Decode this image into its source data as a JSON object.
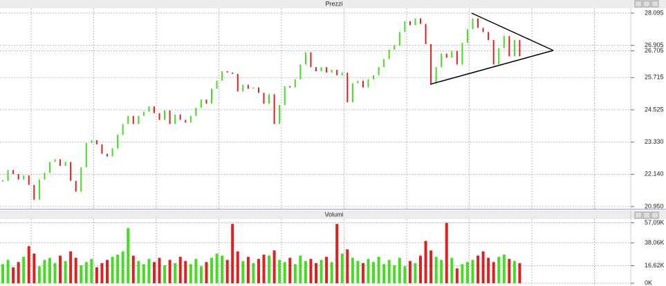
{
  "chart_data": [
    {
      "type": "candlestick",
      "title": "Prezzi",
      "values": [
        21900,
        22300,
        22150,
        21950,
        22100,
        21750,
        21200,
        21950,
        22200,
        22600,
        22700,
        22450,
        22600,
        21900,
        21500,
        22400,
        23300,
        23400,
        23250,
        22900,
        22800,
        23100,
        23600,
        24000,
        24300,
        24000,
        24300,
        24450,
        24650,
        24400,
        24150,
        24500,
        24000,
        24350,
        24150,
        24050,
        24300,
        24600,
        24900,
        24750,
        25300,
        25600,
        25950,
        25900,
        25850,
        25200,
        25450,
        25300,
        25350,
        25150,
        24750,
        25100,
        24000,
        24700,
        25400,
        25350,
        25650,
        26200,
        26650,
        26100,
        25950,
        26100,
        25900,
        26000,
        25800,
        25900,
        24800,
        25500,
        25600,
        25350,
        25650,
        25800,
        26100,
        26400,
        26750,
        26900,
        27400,
        27800,
        27650,
        27900,
        27700,
        26950,
        25500,
        26100,
        26600,
        26450,
        26700,
        26200,
        27000,
        27500,
        27900,
        27550,
        27400,
        27100,
        26200,
        26800,
        27250,
        26500,
        27100,
        26500
      ],
      "up_color": "#44dd22",
      "down_color": "#e02020",
      "ylim": [
        20848,
        28376
      ],
      "yticks": [
        {
          "value": 28095,
          "label": "28.095"
        },
        {
          "value": 26905,
          "label": "26.905"
        },
        {
          "value": 26705,
          "label": "26.705"
        },
        {
          "value": 25715,
          "label": "25.715"
        },
        {
          "value": 24525,
          "label": "24.525"
        },
        {
          "value": 23330,
          "label": "23.330"
        },
        {
          "value": 22140,
          "label": "22.140"
        },
        {
          "value": 20950,
          "label": "20.950"
        }
      ],
      "grid": true
    },
    {
      "type": "bar",
      "title": "Volumi",
      "values": [
        18,
        22,
        15,
        20,
        25,
        35,
        28,
        16,
        22,
        24,
        19,
        26,
        21,
        30,
        24,
        17,
        20,
        23,
        15,
        19,
        22,
        25,
        27,
        30,
        52,
        26,
        21,
        18,
        23,
        20,
        24,
        17,
        22,
        19,
        25,
        21,
        18,
        23,
        16,
        20,
        24,
        28,
        26,
        22,
        56,
        30,
        21,
        25,
        19,
        23,
        27,
        26,
        31,
        22,
        20,
        24,
        18,
        26,
        21,
        23,
        19,
        22,
        25,
        20,
        56,
        28,
        32,
        24,
        21,
        19,
        23,
        20,
        25,
        18,
        22,
        17,
        24,
        16,
        21,
        19,
        26,
        40,
        31,
        25,
        22,
        57,
        24,
        14,
        18,
        20,
        22,
        26,
        30,
        24,
        20,
        25,
        27,
        23,
        21,
        19
      ],
      "ylim": [
        0,
        60
      ],
      "yticks": [
        {
          "value": 57.09,
          "label": "57,09K"
        },
        {
          "value": 38.06,
          "label": "38,06K"
        },
        {
          "value": 16.62,
          "label": "16,62K"
        },
        {
          "value": 0,
          "label": "0K"
        }
      ],
      "grid": true
    }
  ]
}
